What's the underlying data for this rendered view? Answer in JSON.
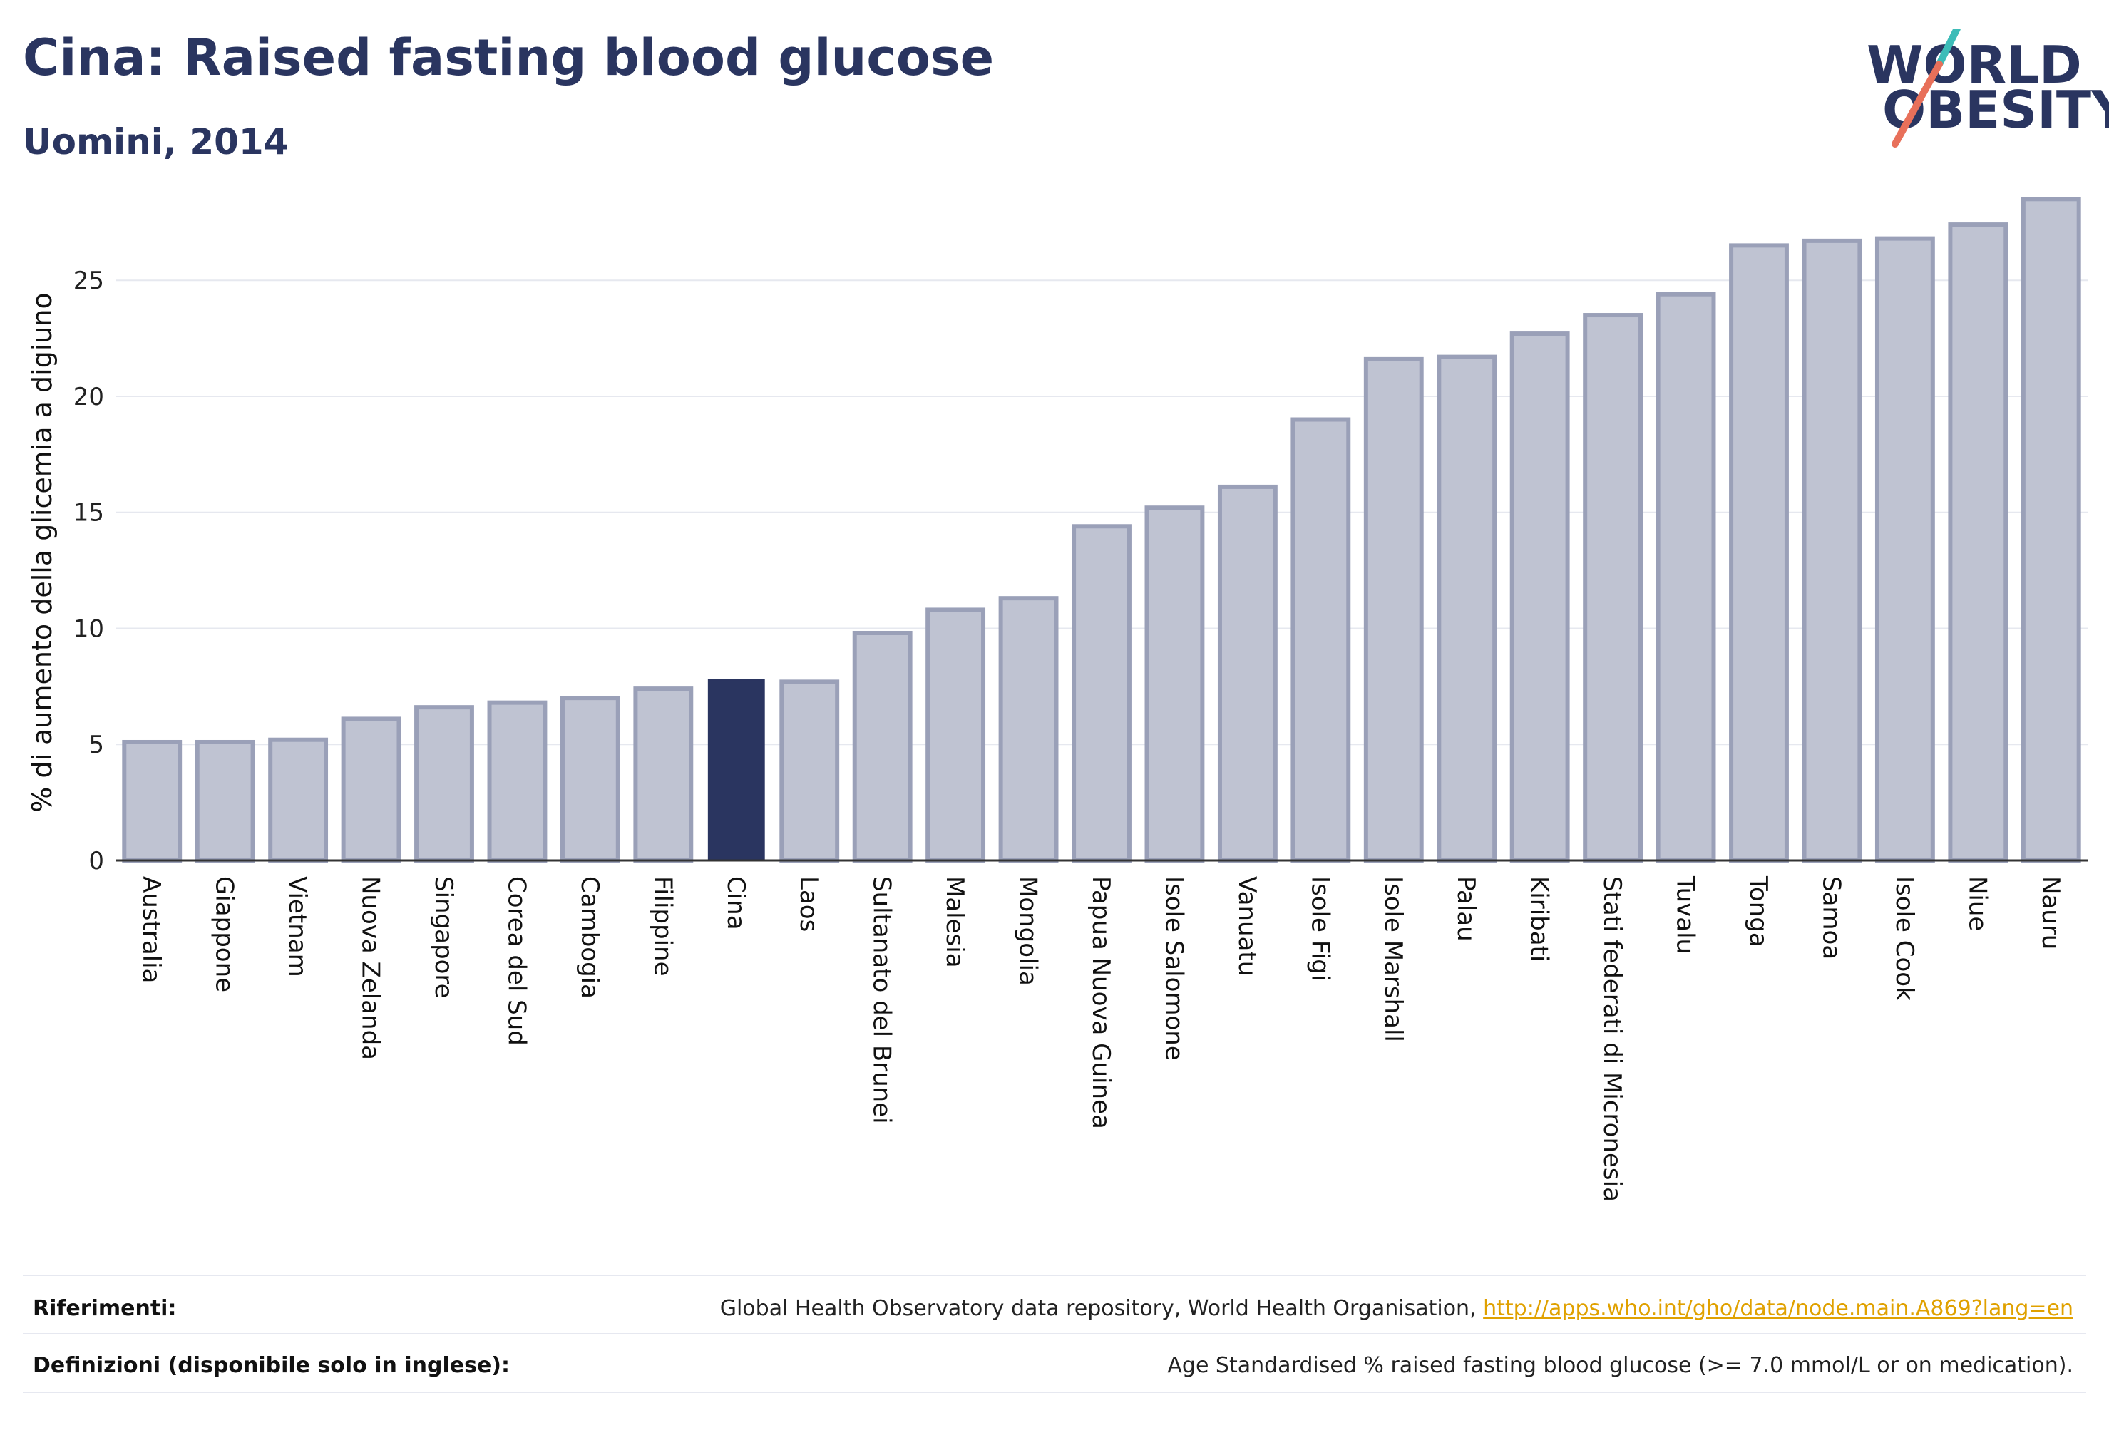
{
  "header": {
    "title": "Cina: Raised fasting blood glucose",
    "subtitle": "Uomini, 2014"
  },
  "logo": {
    "line1": "WORLD",
    "line2": "OBESITY",
    "colors": {
      "text": "#2a3560",
      "slash_top": "#3dbcb8",
      "slash_bottom": "#e8705a"
    }
  },
  "colors": {
    "highlight": "#2a3560",
    "bar": "#bfc3d2",
    "bar_border": "#9aa0b8",
    "grid": "#e6e8ef",
    "axis": "#333333"
  },
  "chart_data": {
    "type": "bar",
    "title": "Cina: Raised fasting blood glucose",
    "subtitle": "Uomini, 2014",
    "xlabel": "",
    "ylabel": "% di aumento della glicemia a digiuno",
    "ylim": [
      0,
      29
    ],
    "yticks": [
      0,
      5,
      10,
      15,
      20,
      25
    ],
    "grid": true,
    "highlight": "Cina",
    "categories": [
      "Australia",
      "Giappone",
      "Vietnam",
      "Nuova Zelanda",
      "Singapore",
      "Corea del Sud",
      "Cambogia",
      "Filippine",
      "Cina",
      "Laos",
      "Sultanato del Brunei",
      "Malesia",
      "Mongolia",
      "Papua Nuova Guinea",
      "Isole Salomone",
      "Vanuatu",
      "Isole Figi",
      "Isole Marshall",
      "Palau",
      "Kiribati",
      "Stati federati di Micronesia",
      "Tuvalu",
      "Tonga",
      "Samoa",
      "Isole Cook",
      "Niue",
      "Nauru"
    ],
    "values": [
      5.1,
      5.1,
      5.2,
      6.1,
      6.6,
      6.8,
      7.0,
      7.4,
      7.8,
      7.7,
      9.8,
      10.8,
      11.3,
      14.4,
      15.2,
      16.1,
      19.0,
      21.6,
      21.7,
      22.7,
      23.5,
      24.4,
      26.5,
      26.7,
      26.8,
      27.4,
      28.5
    ]
  },
  "footer": {
    "references_label": "Riferimenti:",
    "references_text": "Global Health Observatory data repository, World Health Organisation, ",
    "references_link": "http://apps.who.int/gho/data/node.main.A869?lang=en",
    "definitions_label": "Definizioni (disponibile solo in inglese):",
    "definitions_text": "Age Standardised % raised fasting blood glucose (>= 7.0 mmol/L or on medication)."
  }
}
